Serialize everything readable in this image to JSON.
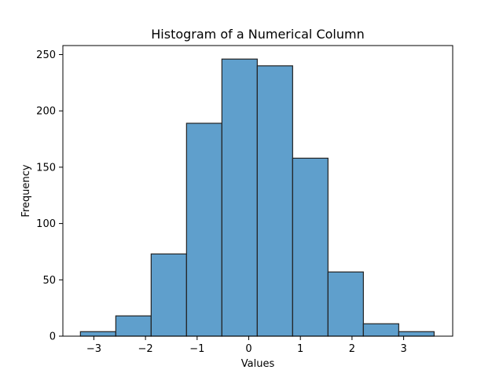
{
  "chart_data": {
    "type": "bar",
    "title": "Histogram of a Numerical Column",
    "xlabel": "Values",
    "ylabel": "Frequency",
    "xlim": [
      -3.6,
      3.95
    ],
    "ylim": [
      0,
      258
    ],
    "grid": false,
    "bar_color": "#5f9fcc",
    "edge_color": "#222222",
    "bins": [
      {
        "x0": -3.26,
        "x1": -2.575,
        "count": 4
      },
      {
        "x0": -2.575,
        "x1": -1.89,
        "count": 18
      },
      {
        "x0": -1.89,
        "x1": -1.205,
        "count": 73
      },
      {
        "x0": -1.205,
        "x1": -0.52,
        "count": 189
      },
      {
        "x0": -0.52,
        "x1": 0.165,
        "count": 246
      },
      {
        "x0": 0.165,
        "x1": 0.85,
        "count": 240
      },
      {
        "x0": 0.85,
        "x1": 1.535,
        "count": 158
      },
      {
        "x0": 1.535,
        "x1": 2.22,
        "count": 57
      },
      {
        "x0": 2.22,
        "x1": 2.905,
        "count": 11
      },
      {
        "x0": 2.905,
        "x1": 3.59,
        "count": 4
      }
    ],
    "x_ticks": [
      -3,
      -2,
      -1,
      0,
      1,
      2,
      3
    ],
    "x_tick_labels": [
      "−3",
      "−2",
      "−1",
      "0",
      "1",
      "2",
      "3"
    ],
    "y_ticks": [
      0,
      50,
      100,
      150,
      200,
      250
    ],
    "y_tick_labels": [
      "0",
      "50",
      "100",
      "150",
      "200",
      "250"
    ]
  }
}
